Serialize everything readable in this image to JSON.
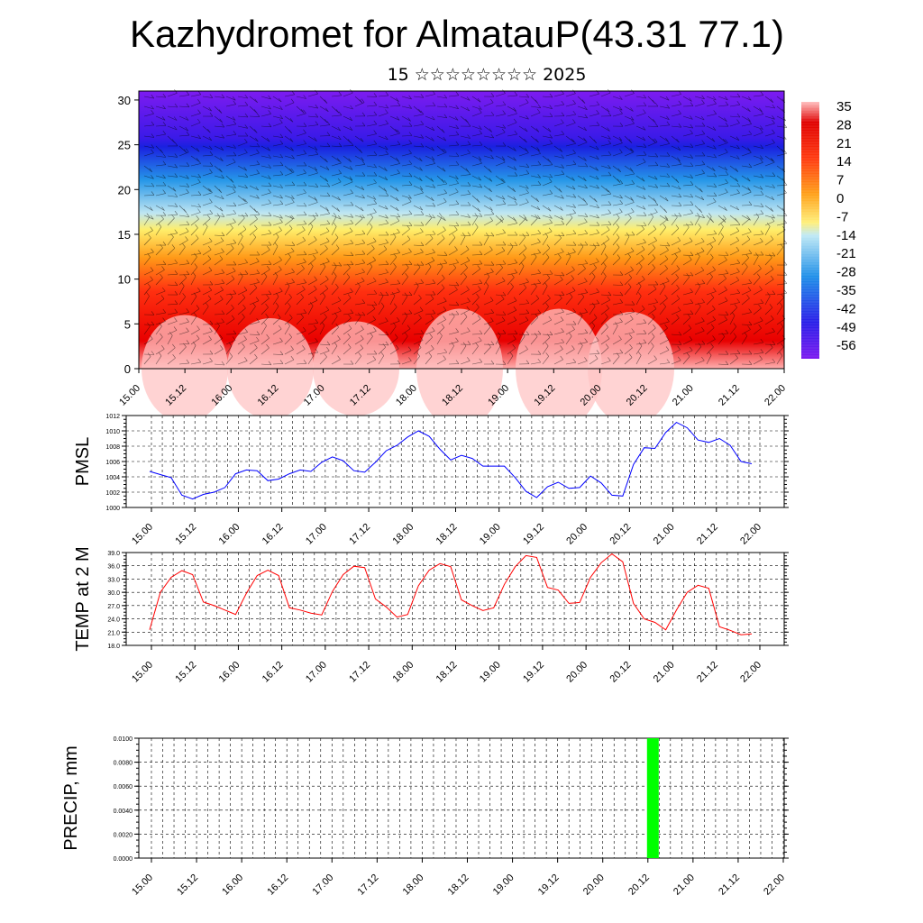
{
  "title": "Kazhydromet for AlmatauP(43.31 77.1)",
  "subtitle": "15 ☆☆☆☆☆☆☆☆ 2025",
  "chart_data": [
    {
      "type": "heatmap",
      "title": "",
      "xlabel": "",
      "ylabel": "",
      "x_ticks": [
        "15.00",
        "15.12",
        "16.00",
        "16.12",
        "17.00",
        "17.12",
        "18.00",
        "18.12",
        "19.00",
        "19.12",
        "20.00",
        "20.12",
        "21.00",
        "21.12",
        "22.00"
      ],
      "y_ticks": [
        "0",
        "5",
        "10",
        "15",
        "20",
        "25",
        "30"
      ],
      "ylim": [
        0,
        31
      ],
      "colorbar_labels": [
        "35",
        "28",
        "21",
        "14",
        "7",
        "0",
        "-7",
        "-14",
        "-21",
        "-28",
        "-35",
        "-42",
        "-49",
        "-56"
      ],
      "colorbar_range": [
        -60,
        38
      ],
      "colors": [
        "#7d1bf0",
        "#2a1ee8",
        "#1f8fe8",
        "#bfe9f5",
        "#ffef7a",
        "#ffa11a",
        "#ff3a10",
        "#e00000",
        "#ffb8b8"
      ],
      "overlay": "wind barbs",
      "temperature_profile_note": "surface to 31 units height, warm near ground, cold near 25"
    },
    {
      "type": "line",
      "ylabel": "PMSL",
      "x_ticks": [
        "15.00",
        "15.12",
        "16.00",
        "16.12",
        "17.00",
        "17.12",
        "18.00",
        "18.12",
        "19.00",
        "19.12",
        "20.00",
        "20.12",
        "21.00",
        "21.12",
        "22.00"
      ],
      "y_ticks": [
        "1000",
        "1002",
        "1004",
        "1006",
        "1008",
        "1010",
        "1012"
      ],
      "ylim": [
        1000,
        1012
      ],
      "line_color": "#0000ff",
      "series": [
        {
          "values": [
            1004.7,
            1004.3,
            1003.9,
            1001.6,
            1001.1,
            1001.7,
            1002.0,
            1002.6,
            1004.4,
            1004.9,
            1004.8,
            1003.5,
            1003.7,
            1004.4,
            1004.9,
            1004.7,
            1005.9,
            1006.6,
            1006.1,
            1004.8,
            1004.6,
            1005.9,
            1007.4,
            1008.1,
            1009.2,
            1010.0,
            1009.3,
            1007.6,
            1006.2,
            1006.8,
            1006.4,
            1005.4,
            1005.4,
            1005.4,
            1003.9,
            1002.1,
            1001.3,
            1002.7,
            1003.3,
            1002.5,
            1002.6,
            1004.1,
            1003.2,
            1001.6,
            1001.5,
            1005.6,
            1007.8,
            1007.7,
            1009.8,
            1011.1,
            1010.4,
            1008.8,
            1008.5,
            1009.0,
            1008.1,
            1006.0,
            1005.7
          ]
        }
      ]
    },
    {
      "type": "line",
      "ylabel": "TEMP at 2 M",
      "x_ticks": [
        "15.00",
        "15.12",
        "16.00",
        "16.12",
        "17.00",
        "17.12",
        "18.00",
        "18.12",
        "19.00",
        "19.12",
        "20.00",
        "20.12",
        "21.00",
        "21.12",
        "22.00"
      ],
      "y_ticks": [
        "18.0",
        "21.0",
        "24.0",
        "27.0",
        "30.0",
        "33.0",
        "36.0",
        "39.0"
      ],
      "ylim": [
        18,
        39
      ],
      "line_color": "#ff0000",
      "series": [
        {
          "values": [
            21.5,
            30.0,
            33.4,
            34.9,
            34.0,
            27.8,
            27.0,
            26.0,
            25.0,
            29.8,
            33.8,
            35.0,
            33.8,
            26.5,
            26.0,
            25.3,
            24.9,
            30.2,
            34.0,
            35.9,
            35.6,
            28.5,
            26.7,
            24.4,
            25.0,
            31.5,
            35.0,
            36.5,
            35.8,
            28.3,
            27.0,
            25.9,
            26.5,
            31.8,
            35.8,
            38.3,
            37.9,
            31.1,
            30.5,
            27.5,
            27.7,
            33.4,
            36.7,
            38.7,
            36.9,
            27.5,
            24.0,
            23.2,
            21.5,
            26.0,
            30.0,
            31.6,
            30.9,
            22.2,
            21.4,
            20.4,
            20.6
          ]
        }
      ]
    },
    {
      "type": "bar",
      "ylabel": "PRECIP, mm",
      "x_ticks": [
        "15.00",
        "15.12",
        "16.00",
        "16.12",
        "17.00",
        "17.12",
        "18.00",
        "18.12",
        "19.00",
        "19.12",
        "20.00",
        "20.12",
        "21.00",
        "21.12",
        "22.00"
      ],
      "y_ticks": [
        "0.0000",
        "0.0020",
        "0.0040",
        "0.0060",
        "0.0080",
        "0.0100"
      ],
      "ylim": [
        0,
        0.01
      ],
      "bar_color": "#00ff00",
      "bars": [
        {
          "x_index": 11.1,
          "value": 0.01
        }
      ]
    }
  ]
}
